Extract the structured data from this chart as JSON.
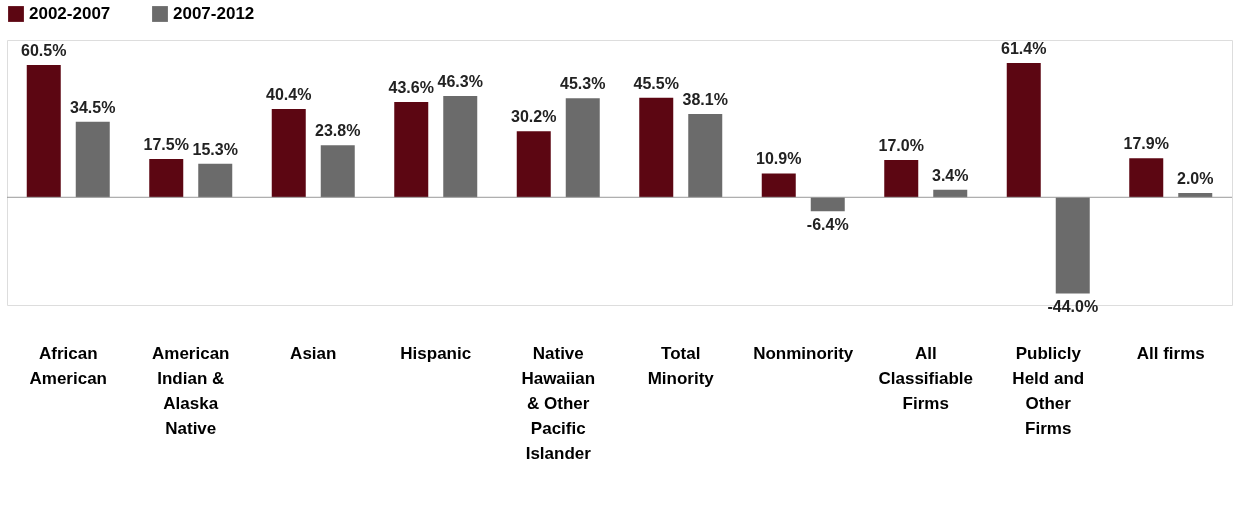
{
  "chart_data": {
    "type": "bar",
    "categories": [
      "African American",
      "American Indian & Alaska Native",
      "Asian",
      "Hispanic",
      "Native Hawaiian & Other Pacific Islander",
      "Total Minority",
      "Nonminority",
      "All Classifiable Firms",
      "Publicly Held and Other Firms",
      "All firms"
    ],
    "series": [
      {
        "name": "2002-2007",
        "color": "#5c0612",
        "values": [
          60.5,
          17.5,
          40.4,
          43.6,
          30.2,
          45.5,
          10.9,
          17.0,
          61.4,
          17.9
        ],
        "value_labels": [
          "60.5%",
          "17.5%",
          "40.4%",
          "43.6%",
          "30.2%",
          "45.5%",
          "10.9%",
          "17.0%",
          "61.4%",
          "17.9%"
        ]
      },
      {
        "name": "2007-2012",
        "color": "#6b6b6b",
        "values": [
          34.5,
          15.3,
          23.8,
          46.3,
          45.3,
          38.1,
          -6.4,
          3.4,
          -44.0,
          2.0
        ],
        "value_labels": [
          "34.5%",
          "15.3%",
          "23.8%",
          "46.3%",
          "45.3%",
          "38.1%",
          "-6.4%",
          "3.4%",
          "-44.0%",
          "2.0%"
        ]
      }
    ],
    "legend": "top",
    "tick_labels": "x"
  }
}
